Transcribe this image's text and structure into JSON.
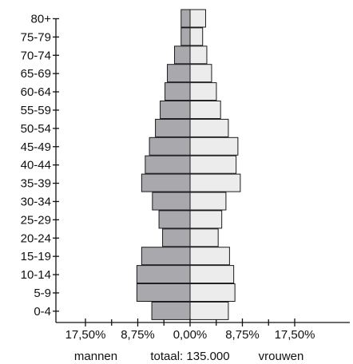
{
  "chart_data": {
    "type": "bar",
    "orientation": "horizontal",
    "categories": [
      "0-4",
      "5-9",
      "10-14",
      "15-19",
      "20-24",
      "25-29",
      "30-34",
      "35-39",
      "40-44",
      "45-49",
      "50-54",
      "55-59",
      "60-64",
      "65-69",
      "70-74",
      "75-79",
      "80+"
    ],
    "series": [
      {
        "name": "mannen",
        "values": [
          6.4,
          8.9,
          8.9,
          8.1,
          4.6,
          5.2,
          6.3,
          8.1,
          7.5,
          6.8,
          5.8,
          5.0,
          4.2,
          3.8,
          2.6,
          1.5,
          1.5
        ]
      },
      {
        "name": "vrouwen",
        "values": [
          6.4,
          7.5,
          7.3,
          6.6,
          4.7,
          5.3,
          6.0,
          8.4,
          7.7,
          8.0,
          6.4,
          5.1,
          4.4,
          3.6,
          2.8,
          2.1,
          2.6
        ]
      }
    ],
    "x_tick_labels": [
      "17,50%",
      "8,75%",
      "0,00%",
      "8,75%",
      "17,50%"
    ],
    "xlim": [
      -17.5,
      17.5
    ],
    "label_left": "mannen",
    "label_center": "totaal: 135.000",
    "label_right": "vrouwen",
    "colors": {
      "mannen": "#a9a9ad",
      "vrouwen": "#ececec"
    },
    "grid": false
  }
}
